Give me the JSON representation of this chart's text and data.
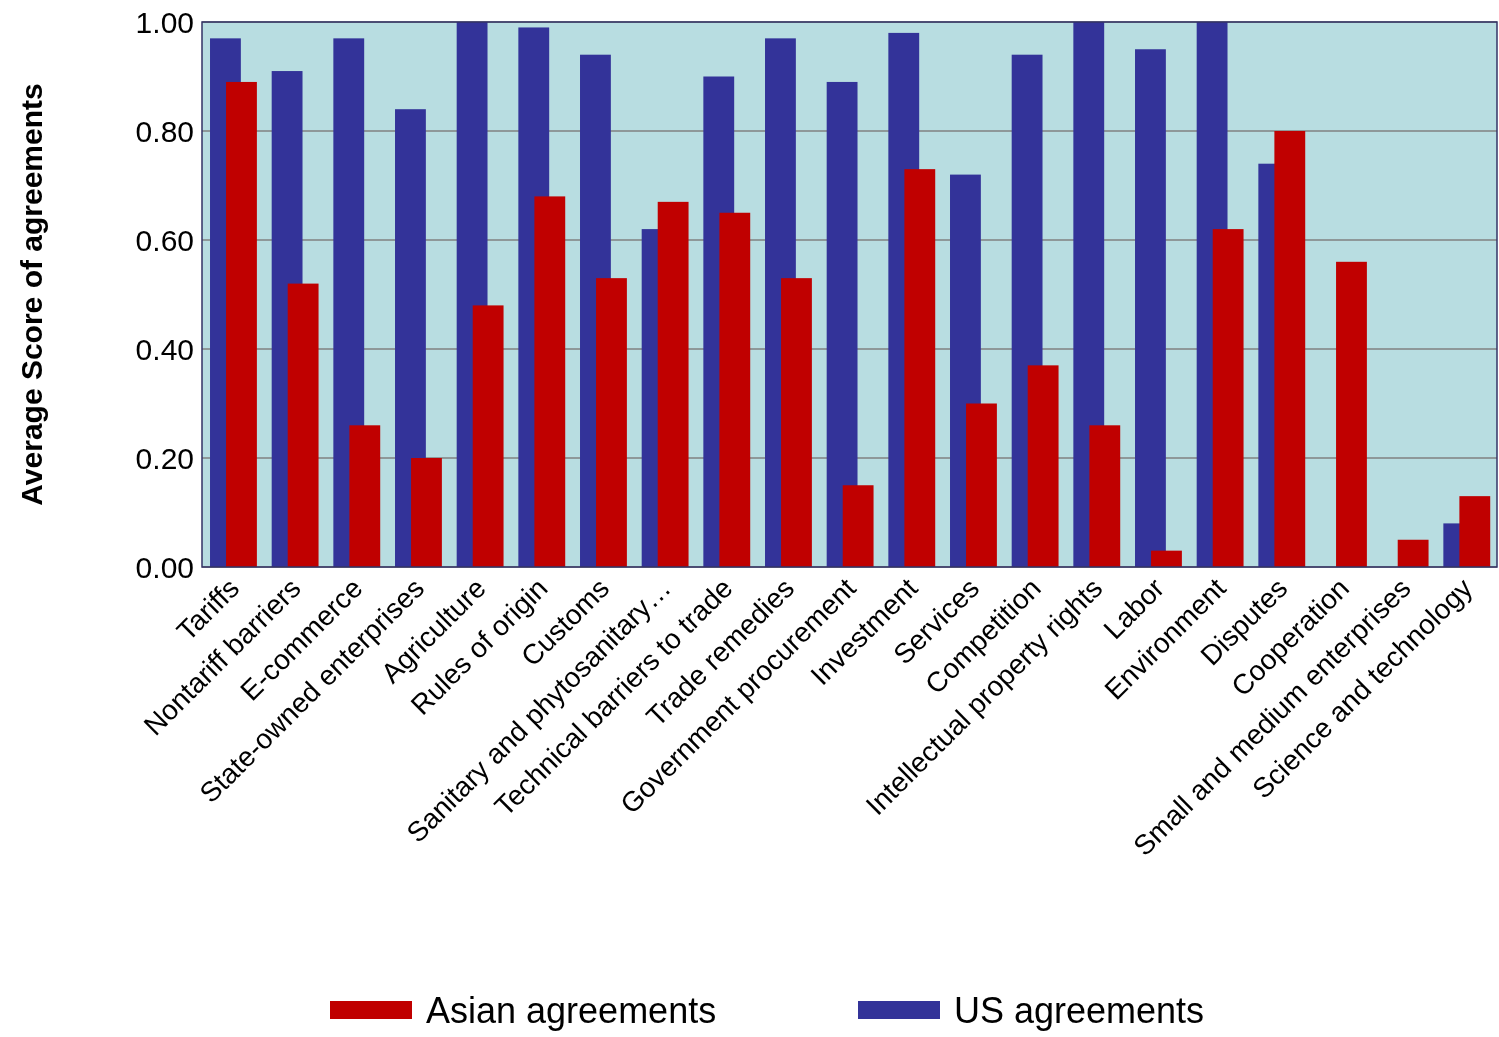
{
  "chart_data": {
    "type": "bar",
    "ylabel": "Average Score of agreements",
    "categories": [
      "Tariffs",
      "Nontariff barriers",
      "E-commerce",
      "State-owned enterprises",
      "Agriculture",
      "Rules of origin",
      "Customs",
      "Sanitary and phytosanitary…",
      "Technical barriers to trade",
      "Trade remedies",
      "Government procurement",
      "Investment",
      "Services",
      "Competition",
      "Intellectual property rights",
      "Labor",
      "Environment",
      "Disputes",
      "Cooperation",
      "Small and medium enterprises",
      "Science and technology"
    ],
    "series": [
      {
        "name": "Asian agreements",
        "color": "#c00000",
        "values": [
          0.89,
          0.52,
          0.26,
          0.2,
          0.48,
          0.68,
          0.53,
          0.67,
          0.65,
          0.53,
          0.15,
          0.73,
          0.3,
          0.37,
          0.26,
          0.03,
          0.62,
          0.8,
          0.56,
          0.05,
          0.13
        ]
      },
      {
        "name": "US agreements",
        "color": "#333399",
        "values": [
          0.97,
          0.91,
          0.97,
          0.84,
          1.0,
          0.99,
          0.94,
          0.62,
          0.9,
          0.97,
          0.89,
          0.98,
          0.72,
          0.94,
          1.0,
          0.95,
          1.0,
          0.74,
          0,
          0,
          0.08
        ]
      }
    ],
    "ylim": [
      0,
      1
    ],
    "yticks": [
      {
        "value": 0,
        "label": "0.00"
      },
      {
        "value": 0.2,
        "label": "0.20"
      },
      {
        "value": 0.4,
        "label": "0.40"
      },
      {
        "value": 0.6,
        "label": "0.60"
      },
      {
        "value": 0.8,
        "label": "0.80"
      },
      {
        "value": 1,
        "label": "1.00"
      }
    ],
    "grid": "y",
    "legend": "bottom"
  }
}
